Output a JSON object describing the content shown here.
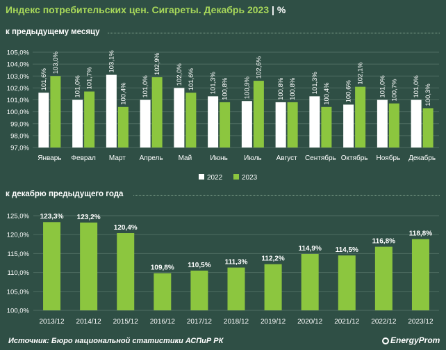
{
  "title": {
    "main": "Индекс потребительских цен. Сигареты. Декабрь 2023",
    "separator": "|",
    "unit": "%"
  },
  "source": "Источник: Бюро национальной статистики АСПиР РК",
  "logo": "EnergyProm",
  "colors": {
    "background": "#2f4f45",
    "white": "#ffffff",
    "green": "#8cc63f",
    "title": "#a8d85a"
  },
  "chart_data": [
    {
      "type": "bar",
      "title": "к предыдущему месяцу",
      "categories": [
        "Январь",
        "Феврал",
        "Март",
        "Апрель",
        "Май",
        "Июнь",
        "Июль",
        "Август",
        "Сентябрь",
        "Октябрь",
        "Ноябрь",
        "Декабрь"
      ],
      "series": [
        {
          "name": "2022",
          "color": "#ffffff",
          "values": [
            101.6,
            101.0,
            103.1,
            101.0,
            102.0,
            101.3,
            100.9,
            100.8,
            101.3,
            100.6,
            101.0,
            101.0
          ],
          "labels": [
            "101,6%",
            "101,0%",
            "103,1%",
            "101,0%",
            "102,0%",
            "101,3%",
            "100,9%",
            "100,8%",
            "101,3%",
            "100,6%",
            "101,0%",
            "101,0%"
          ]
        },
        {
          "name": "2023",
          "color": "#8cc63f",
          "values": [
            103.0,
            101.7,
            100.4,
            102.9,
            101.6,
            100.8,
            102.6,
            100.8,
            100.4,
            102.1,
            100.7,
            100.3
          ],
          "labels": [
            "103,0%",
            "101,7%",
            "100,4%",
            "102,9%",
            "101,6%",
            "100,8%",
            "102,6%",
            "100,8%",
            "100,4%",
            "102,1%",
            "100,7%",
            "100,3%"
          ]
        }
      ],
      "ylim": [
        97,
        105
      ],
      "ytick_values": [
        97,
        98,
        99,
        100,
        101,
        102,
        103,
        104,
        105
      ],
      "yticks": [
        "97,0%",
        "98,0%",
        "99,0%",
        "100,0%",
        "101,0%",
        "102,0%",
        "103,0%",
        "104,0%",
        "105,0%"
      ],
      "legend_position": "bottom",
      "grid": true
    },
    {
      "type": "bar",
      "title": "к декабрю предыдущего года",
      "categories": [
        "2013/12",
        "2014/12",
        "2015/12",
        "2016/12",
        "2017/12",
        "2018/12",
        "2019/12",
        "2020/12",
        "2021/12",
        "2022/12",
        "2023/12"
      ],
      "values": [
        123.3,
        123.2,
        120.4,
        109.8,
        110.5,
        111.3,
        112.2,
        114.9,
        114.5,
        116.8,
        118.8
      ],
      "labels": [
        "123,3%",
        "123,2%",
        "120,4%",
        "109,8%",
        "110,5%",
        "111,3%",
        "112,2%",
        "114,9%",
        "114,5%",
        "116,8%",
        "118,8%"
      ],
      "color": "#8cc63f",
      "ylim": [
        100,
        125
      ],
      "ytick_values": [
        100,
        105,
        110,
        115,
        120,
        125
      ],
      "yticks": [
        "100,0%",
        "105,0%",
        "110,0%",
        "115,0%",
        "120,0%",
        "125,0%"
      ],
      "grid": true
    }
  ]
}
